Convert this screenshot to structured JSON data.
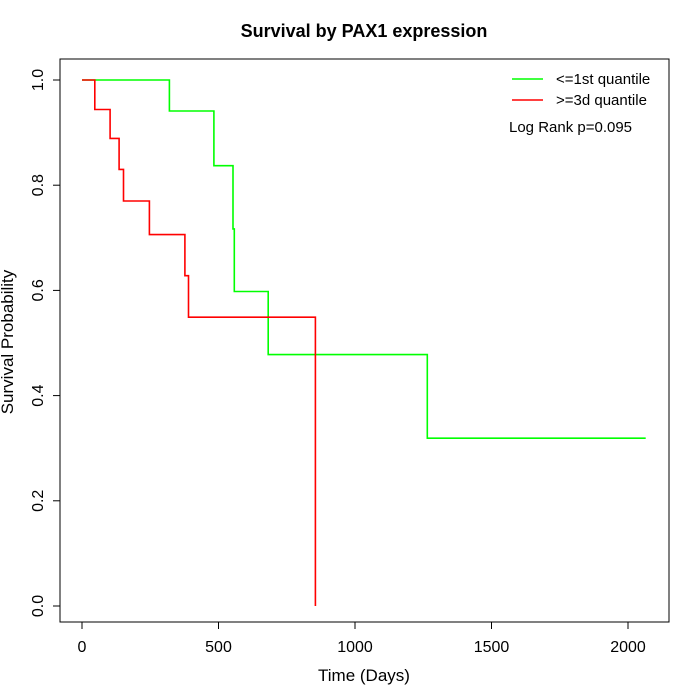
{
  "chart_data": {
    "type": "line",
    "title": "Survival by PAX1 expression",
    "xlabel": "Time (Days)",
    "ylabel": "Survival Probability",
    "xlim": [
      0,
      2070
    ],
    "ylim": [
      0,
      1
    ],
    "x_ticks": [
      0,
      500,
      1000,
      1500,
      2000
    ],
    "y_ticks": [
      0.0,
      0.2,
      0.4,
      0.6,
      0.8,
      1.0
    ],
    "x_tick_labels": [
      "0",
      "500",
      "1000",
      "1500",
      "2000"
    ],
    "y_tick_labels": [
      "0.0",
      "0.2",
      "0.4",
      "0.6",
      "0.8",
      "1.0"
    ],
    "grid": false,
    "legend_position": "top-right",
    "annotation": "Log Rank p=0.095",
    "series": [
      {
        "name": "<=1st quantile",
        "color": "#00ff00",
        "points": [
          [
            0,
            1.0
          ],
          [
            320,
            1.0
          ],
          [
            320,
            0.941
          ],
          [
            483,
            0.941
          ],
          [
            483,
            0.837
          ],
          [
            553,
            0.837
          ],
          [
            553,
            0.717
          ],
          [
            558,
            0.717
          ],
          [
            558,
            0.598
          ],
          [
            682,
            0.598
          ],
          [
            682,
            0.478
          ],
          [
            1265,
            0.478
          ],
          [
            1265,
            0.319
          ],
          [
            2065,
            0.319
          ]
        ]
      },
      {
        "name": ">=3d quantile",
        "color": "#ff0000",
        "points": [
          [
            0,
            1.0
          ],
          [
            47,
            1.0
          ],
          [
            47,
            0.944
          ],
          [
            103,
            0.944
          ],
          [
            103,
            0.889
          ],
          [
            136,
            0.889
          ],
          [
            136,
            0.83
          ],
          [
            152,
            0.83
          ],
          [
            152,
            0.77
          ],
          [
            247,
            0.77
          ],
          [
            247,
            0.706
          ],
          [
            377,
            0.706
          ],
          [
            377,
            0.628
          ],
          [
            390,
            0.628
          ],
          [
            390,
            0.549
          ],
          [
            855,
            0.549
          ],
          [
            855,
            0.0
          ]
        ]
      }
    ]
  }
}
